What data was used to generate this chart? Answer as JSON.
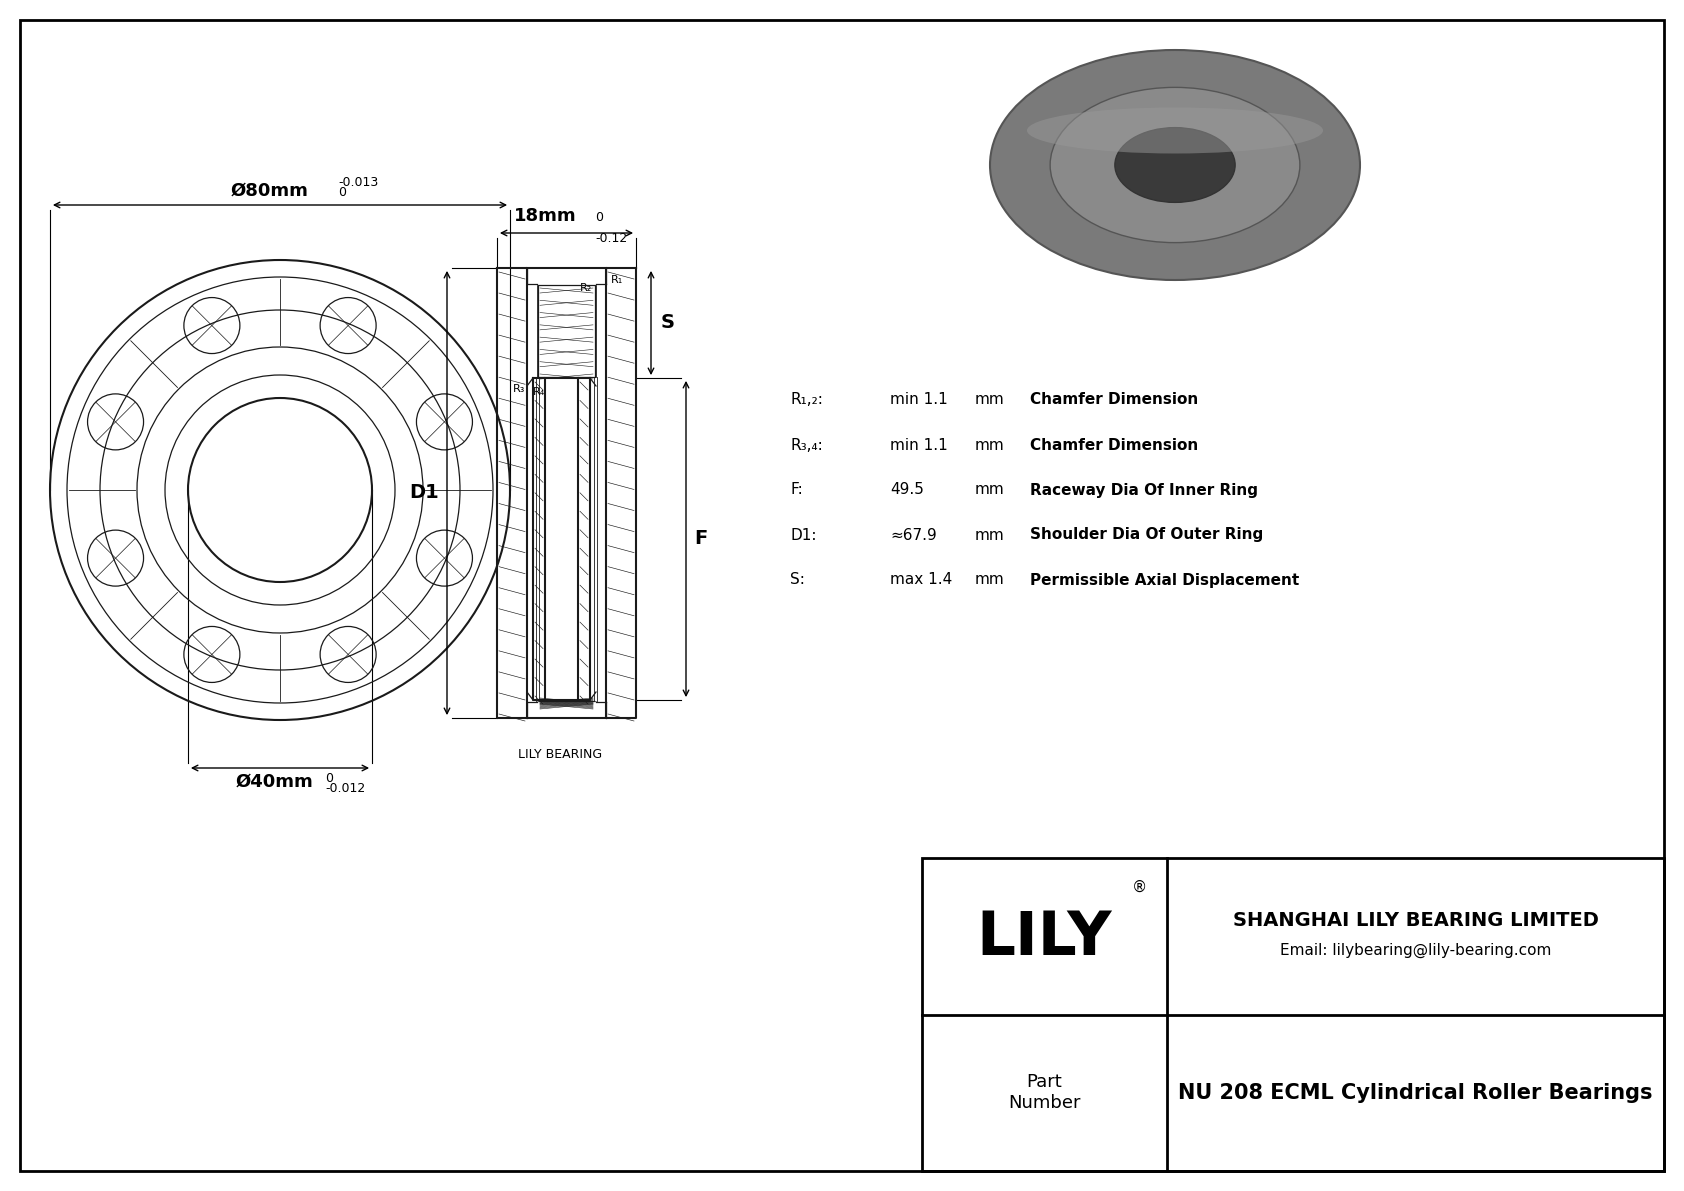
{
  "bg_color": "#ffffff",
  "line_color": "#1a1a1a",
  "dim_d80": "Ø80mm",
  "dim_d80_tol_top": "0",
  "dim_d80_tol_bot": "-0.013",
  "dim_d40": "Ø40mm",
  "dim_d40_tol_top": "0",
  "dim_d40_tol_bot": "-0.012",
  "dim_18": "18mm",
  "dim_18_tol_top": "0",
  "dim_18_tol_bot": "-0.12",
  "label_S": "S",
  "label_D1": "D1",
  "label_F": "F",
  "spec_R12_label": "R₁,₂:",
  "spec_R12_val": "min 1.1",
  "spec_R12_unit": "mm",
  "spec_R12_desc": "Chamfer Dimension",
  "spec_R34_label": "R₃,₄:",
  "spec_R34_val": "min 1.1",
  "spec_R34_unit": "mm",
  "spec_R34_desc": "Chamfer Dimension",
  "spec_F_label": "F:",
  "spec_F_val": "49.5",
  "spec_F_unit": "mm",
  "spec_F_desc": "Raceway Dia Of Inner Ring",
  "spec_D1_label": "D1:",
  "spec_D1_val": "≈67.9",
  "spec_D1_unit": "mm",
  "spec_D1_desc": "Shoulder Dia Of Outer Ring",
  "spec_S_label": "S:",
  "spec_S_val": "max 1.4",
  "spec_S_unit": "mm",
  "spec_S_desc": "Permissible Axial Displacement",
  "lily_bearing_label": "LILY BEARING",
  "company": "SHANGHAI LILY BEARING LIMITED",
  "email": "Email: lilybearing@lily-bearing.com",
  "part_label": "Part\nNumber",
  "part_number": "NU 208 ECML Cylindrical Roller Bearings",
  "lily_logo": "LILY",
  "R2_label": "R₂",
  "R1_label": "R₁",
  "R3_label": "R₃",
  "R4_label": "R₄"
}
